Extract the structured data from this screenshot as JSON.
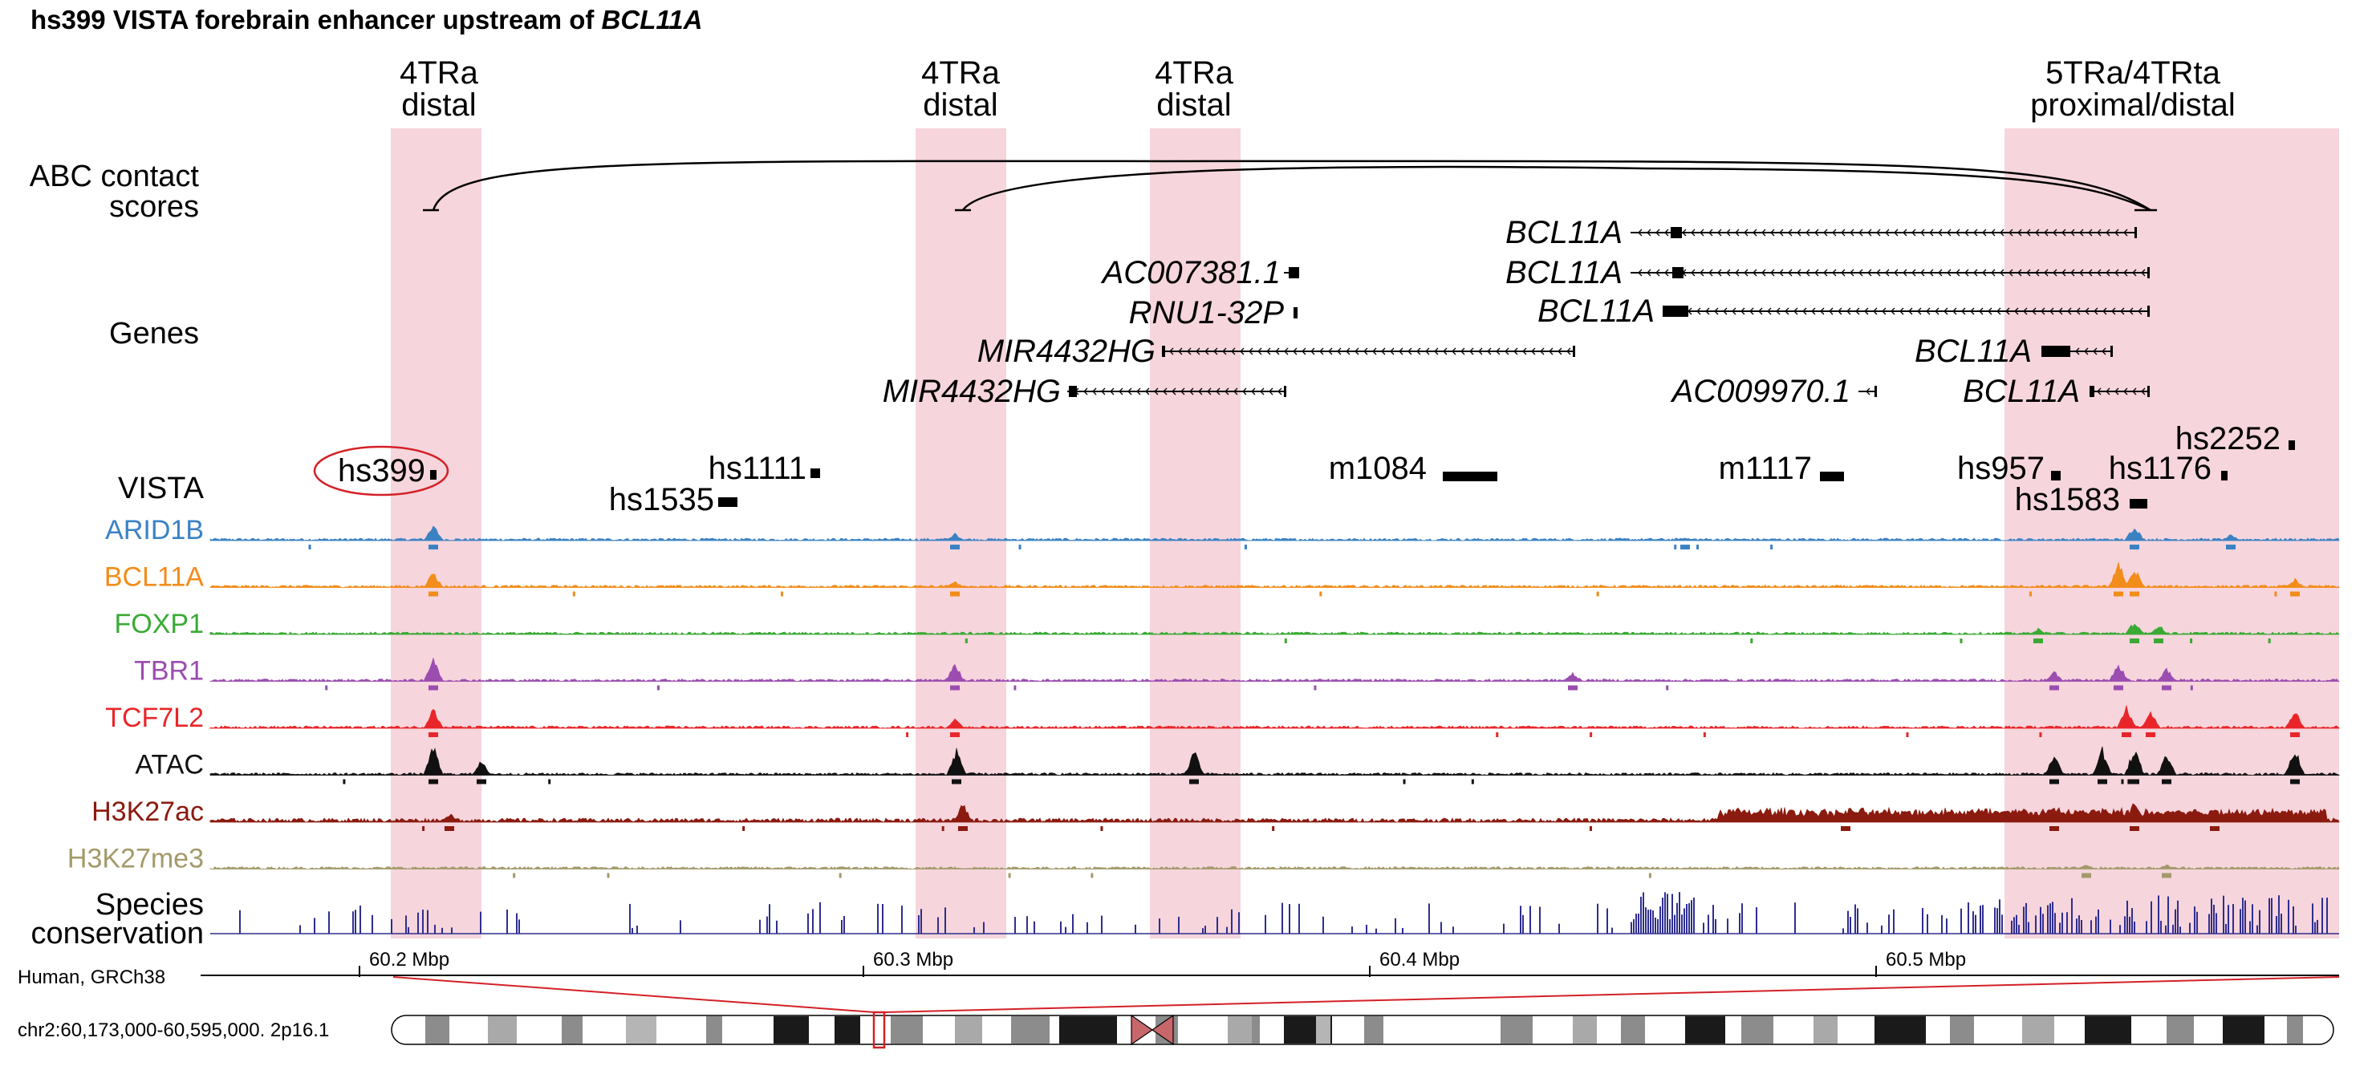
{
  "title": {
    "prefix": "hs399 VISTA forebrain enhancer upstream of",
    "gene": "BCL11A"
  },
  "regions": [
    {
      "line1": "4TRa",
      "line2": "distal"
    },
    {
      "line1": "4TRa",
      "line2": "distal"
    },
    {
      "line1": "4TRa",
      "line2": "distal"
    },
    {
      "line1": "5TRa/4TRta",
      "line2": "proximal/distal"
    }
  ],
  "track_labels": {
    "abc_line1": "ABC contact",
    "abc_line2": "scores",
    "genes": "Genes",
    "vista": "VISTA",
    "conservation_line1": "Species",
    "conservation_line2": "conservation",
    "assembly": "Human, GRCh38",
    "locus": "chr2:60,173,000-60,595,000. 2p16.1"
  },
  "genes": [
    {
      "name": "BCL11A"
    },
    {
      "name": "BCL11A"
    },
    {
      "name": "BCL11A"
    },
    {
      "name": "AC007381.1"
    },
    {
      "name": "RNU1-32P"
    },
    {
      "name": "MIR4432HG"
    },
    {
      "name": "BCL11A"
    },
    {
      "name": "MIR4432HG"
    },
    {
      "name": "AC009970.1"
    },
    {
      "name": "BCL11A"
    }
  ],
  "vista_elements": [
    {
      "name": "hs399",
      "highlighted": true
    },
    {
      "name": "hs1111"
    },
    {
      "name": "hs1535"
    },
    {
      "name": "m1084"
    },
    {
      "name": "m1117"
    },
    {
      "name": "hs957"
    },
    {
      "name": "hs1176"
    },
    {
      "name": "hs2252"
    },
    {
      "name": "hs1583"
    }
  ],
  "signal_tracks": [
    {
      "name": "ARID1B",
      "color": "#3b82c4"
    },
    {
      "name": "BCL11A",
      "color": "#f28c1a"
    },
    {
      "name": "FOXP1",
      "color": "#3aaa35"
    },
    {
      "name": "TBR1",
      "color": "#9b4db0"
    },
    {
      "name": "TCF7L2",
      "color": "#e8262a"
    },
    {
      "name": "ATAC",
      "color": "#111111"
    },
    {
      "name": "H3K27ac",
      "color": "#8b1a0f"
    },
    {
      "name": "H3K27me3",
      "color": "#a39a6a"
    }
  ],
  "conservation_color": "#2f2e8f",
  "highlight_color": "#f6d5dc",
  "ruler_ticks": [
    "60.2 Mbp",
    "60.3 Mbp",
    "60.4 Mbp",
    "60.5 Mbp"
  ]
}
